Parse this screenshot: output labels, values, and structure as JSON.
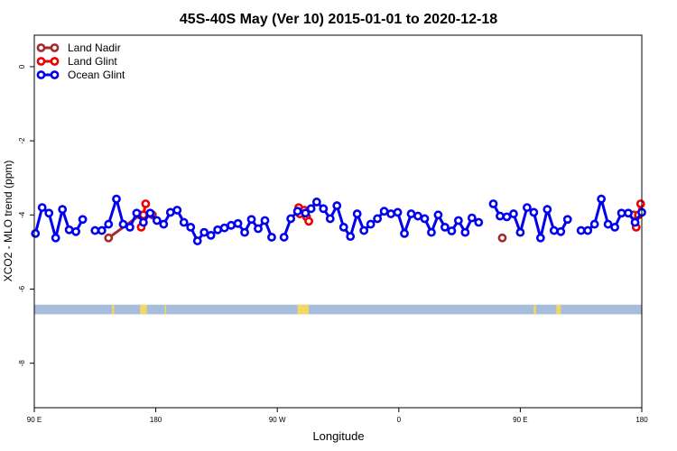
{
  "chart_data": {
    "type": "line",
    "title": "45S-40S May (Ver 10)   2015-01-01 to 2020-12-18",
    "xlabel": "Longitude",
    "ylabel": "XCO2 - MLO trend (ppm)",
    "xlim": [
      -90,
      180
    ],
    "ylim": [
      -9.2,
      0.85
    ],
    "x_axis_span_deg": 270,
    "yticks": [
      0,
      -2,
      -4,
      -6,
      -8
    ],
    "xticks": [
      {
        "value": -90,
        "label": "90 E"
      },
      {
        "value": -36,
        "label": "180"
      },
      {
        "value": 18,
        "label": "90 W"
      },
      {
        "value": 72,
        "label": "0"
      },
      {
        "value": 126,
        "label": "90 E"
      },
      {
        "value": 180,
        "label": "180"
      }
    ],
    "legend": {
      "position": "top-left",
      "entries": [
        {
          "name": "Land Nadir",
          "color": "#a52a2a"
        },
        {
          "name": "Land Glint",
          "color": "#ee0000"
        },
        {
          "name": "Ocean Glint",
          "color": "#0000ee"
        }
      ]
    },
    "map_strip": {
      "y_from": -6.42,
      "y_to": -6.68,
      "ocean_color": "#a6bddb",
      "land_color": "#f4d667",
      "land_x": [
        [
          -55.5,
          -54.5
        ],
        [
          -43,
          -40
        ],
        [
          -32,
          -31.5
        ],
        [
          27,
          32
        ],
        [
          132,
          133
        ],
        [
          142,
          144
        ]
      ]
    },
    "series": [
      {
        "name": "Land Nadir",
        "color": "#a52a2a",
        "segments": [
          [
            [
              -57,
              -4.62
            ],
            [
              -43,
              -4.0
            ]
          ],
          [
            [
              -37.5,
              -4.0
            ]
          ],
          [
            [
              118,
              -4.62
            ]
          ],
          [
            [
              176.5,
              -4.0
            ]
          ]
        ]
      },
      {
        "name": "Land Glint",
        "color": "#ee0000",
        "segments": [
          [
            [
              -42.5,
              -4.33
            ],
            [
              -41.5,
              -4.0
            ],
            [
              -40.5,
              -3.7
            ]
          ],
          [
            [
              27.5,
              -3.8
            ],
            [
              28,
              -3.97
            ],
            [
              30,
              -3.87
            ],
            [
              31,
              -4.05
            ],
            [
              32,
              -4.17
            ]
          ],
          [
            [
              177.5,
              -4.33
            ],
            [
              178.5,
              -4.0
            ],
            [
              179.5,
              -3.7
            ]
          ]
        ]
      },
      {
        "name": "Ocean Glint",
        "color": "#0000ee",
        "segments": [
          [
            [
              -89.5,
              -4.5
            ],
            [
              -86.5,
              -3.8
            ],
            [
              -83.5,
              -3.95
            ],
            [
              -80.5,
              -4.62
            ],
            [
              -77.5,
              -3.85
            ],
            [
              -74.5,
              -4.4
            ],
            [
              -71.5,
              -4.45
            ],
            [
              -68.5,
              -4.12
            ]
          ],
          [
            [
              -63,
              -4.42
            ],
            [
              -60,
              -4.42
            ],
            [
              -57,
              -4.25
            ],
            [
              -53.5,
              -3.57
            ],
            [
              -50.5,
              -4.25
            ],
            [
              -47.5,
              -4.33
            ],
            [
              -44.5,
              -3.95
            ],
            [
              -41.5,
              -4.2
            ],
            [
              -38.5,
              -3.95
            ],
            [
              -35.5,
              -4.15
            ],
            [
              -32.5,
              -4.25
            ],
            [
              -29.5,
              -3.93
            ],
            [
              -26.5,
              -3.87
            ],
            [
              -23.5,
              -4.2
            ],
            [
              -20.5,
              -4.33
            ],
            [
              -17.5,
              -4.7
            ],
            [
              -14.5,
              -4.47
            ],
            [
              -11.5,
              -4.55
            ],
            [
              -8.5,
              -4.4
            ],
            [
              -5.5,
              -4.35
            ],
            [
              -2.5,
              -4.28
            ],
            [
              0.5,
              -4.23
            ],
            [
              3.5,
              -4.47
            ],
            [
              6.5,
              -4.12
            ],
            [
              9.5,
              -4.37
            ],
            [
              12.5,
              -4.15
            ],
            [
              15.5,
              -4.6
            ]
          ],
          [
            [
              21,
              -4.6
            ],
            [
              24,
              -4.1
            ],
            [
              27,
              -3.9
            ]
          ],
          [
            [
              30.5,
              -3.95
            ],
            [
              33,
              -3.83
            ],
            [
              35.5,
              -3.65
            ],
            [
              38.5,
              -3.83
            ],
            [
              41.5,
              -4.1
            ],
            [
              44.5,
              -3.75
            ],
            [
              47.5,
              -4.33
            ],
            [
              50.5,
              -4.58
            ],
            [
              53.5,
              -3.97
            ],
            [
              56.5,
              -4.42
            ],
            [
              59.5,
              -4.25
            ],
            [
              62.5,
              -4.1
            ],
            [
              65.5,
              -3.9
            ],
            [
              68.5,
              -3.97
            ],
            [
              71.5,
              -3.93
            ],
            [
              74.5,
              -4.5
            ],
            [
              77.5,
              -3.97
            ],
            [
              80.5,
              -4.03
            ],
            [
              83.5,
              -4.1
            ],
            [
              86.5,
              -4.47
            ],
            [
              89.5,
              -4.0
            ],
            [
              92.5,
              -4.33
            ],
            [
              95.5,
              -4.43
            ],
            [
              98.5,
              -4.15
            ],
            [
              101.5,
              -4.47
            ],
            [
              104.5,
              -4.08
            ],
            [
              107.5,
              -4.2
            ]
          ],
          [
            [
              114,
              -3.7
            ],
            [
              117,
              -4.03
            ],
            [
              120,
              -4.05
            ],
            [
              123,
              -3.97
            ],
            [
              126,
              -4.47
            ],
            [
              129,
              -3.8
            ],
            [
              132,
              -3.93
            ],
            [
              135,
              -4.62
            ],
            [
              138,
              -3.85
            ],
            [
              141,
              -4.42
            ],
            [
              144,
              -4.45
            ],
            [
              147,
              -4.12
            ]
          ],
          [
            [
              153,
              -4.42
            ],
            [
              156,
              -4.42
            ],
            [
              159,
              -4.25
            ],
            [
              162,
              -3.57
            ],
            [
              165,
              -4.25
            ],
            [
              168,
              -4.33
            ],
            [
              171,
              -3.95
            ],
            [
              174,
              -3.95
            ],
            [
              177,
              -4.2
            ],
            [
              180,
              -3.93
            ]
          ]
        ]
      }
    ]
  }
}
